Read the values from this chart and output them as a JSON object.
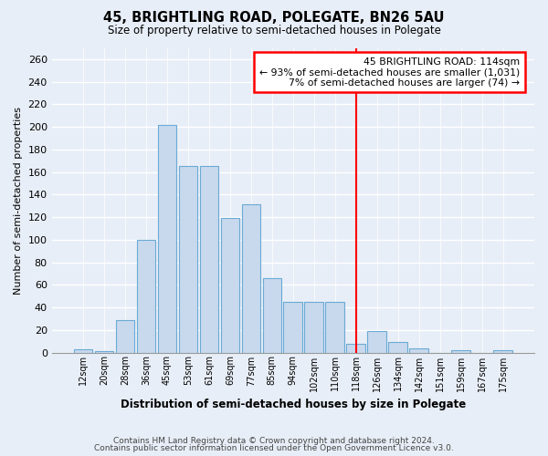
{
  "title": "45, BRIGHTLING ROAD, POLEGATE, BN26 5AU",
  "subtitle": "Size of property relative to semi-detached houses in Polegate",
  "xlabel": "Distribution of semi-detached houses by size in Polegate",
  "ylabel": "Number of semi-detached properties",
  "footnote1": "Contains HM Land Registry data © Crown copyright and database right 2024.",
  "footnote2": "Contains public sector information licensed under the Open Government Licence v3.0.",
  "bar_labels": [
    "12sqm",
    "20sqm",
    "28sqm",
    "36sqm",
    "45sqm",
    "53sqm",
    "61sqm",
    "69sqm",
    "77sqm",
    "85sqm",
    "94sqm",
    "102sqm",
    "110sqm",
    "118sqm",
    "126sqm",
    "134sqm",
    "142sqm",
    "151sqm",
    "159sqm",
    "167sqm",
    "175sqm"
  ],
  "bar_values": [
    3,
    1,
    29,
    100,
    202,
    165,
    165,
    119,
    131,
    66,
    45,
    45,
    45,
    8,
    19,
    9,
    4,
    0,
    2,
    0,
    2
  ],
  "bar_color": "#c8d9ee",
  "bar_edge_color": "#6aaad4",
  "ylim": [
    0,
    270
  ],
  "yticks": [
    0,
    20,
    40,
    60,
    80,
    100,
    120,
    140,
    160,
    180,
    200,
    220,
    240,
    260
  ],
  "vline_x_index": 13,
  "vline_color": "red",
  "annotation_title": "45 BRIGHTLING ROAD: 114sqm",
  "annotation_line1": "← 93% of semi-detached houses are smaller (1,031)",
  "annotation_line2": "7% of semi-detached houses are larger (74) →",
  "background_color": "#e8eef7",
  "plot_bg_color": "#e8eef7"
}
